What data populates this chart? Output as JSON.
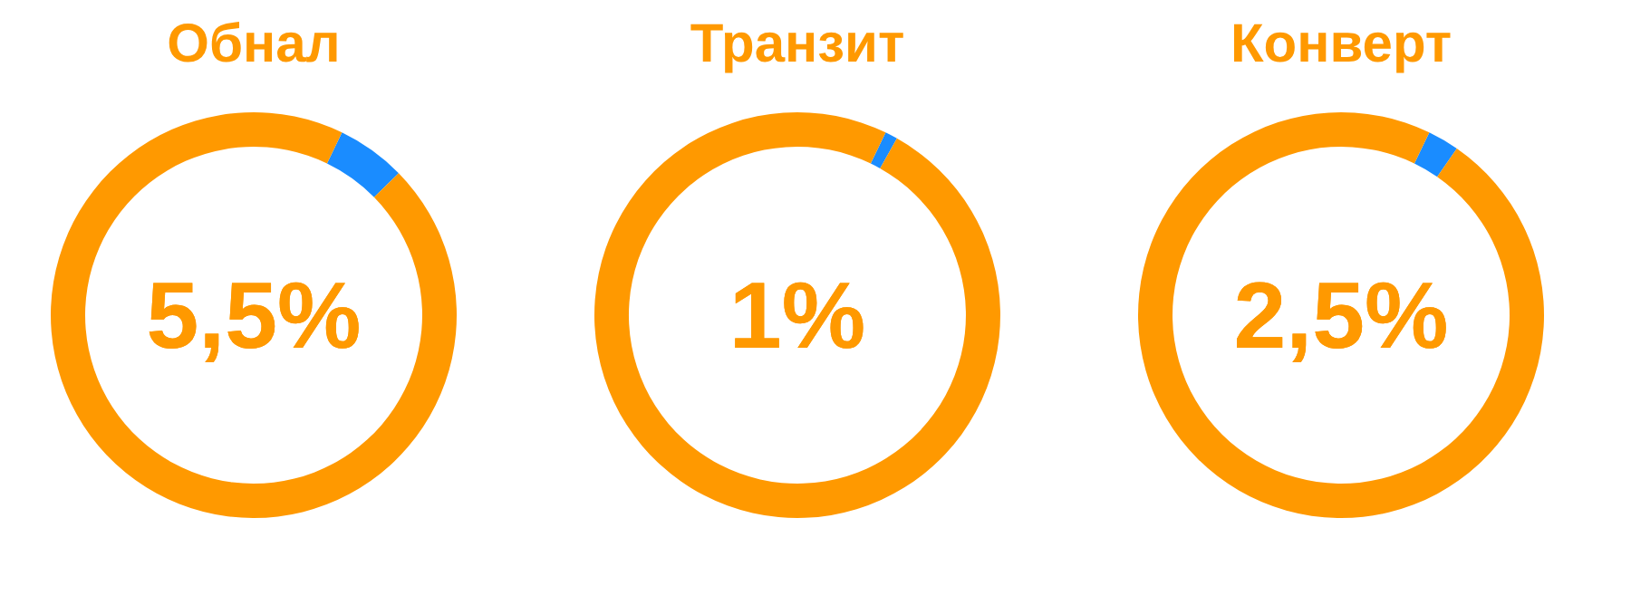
{
  "chart_data": [
    {
      "type": "donut",
      "title": "Обнал",
      "categories": [
        null,
        null
      ],
      "values": [
        5.5,
        94.5
      ],
      "colors": [
        "#1a8cff",
        "#ff9900"
      ],
      "annotations": [
        "5,5%"
      ]
    },
    {
      "type": "donut",
      "title": "Транзит",
      "categories": [
        null,
        null
      ],
      "values": [
        1,
        99
      ],
      "colors": [
        "#1a8cff",
        "#ff9900"
      ],
      "annotations": [
        "1%"
      ]
    },
    {
      "type": "donut",
      "title": "Конверт",
      "categories": [
        null,
        null
      ],
      "values": [
        2.5,
        97.5
      ],
      "colors": [
        "#1a8cff",
        "#ff9900"
      ],
      "annotations": [
        "2,5%"
      ]
    }
  ]
}
